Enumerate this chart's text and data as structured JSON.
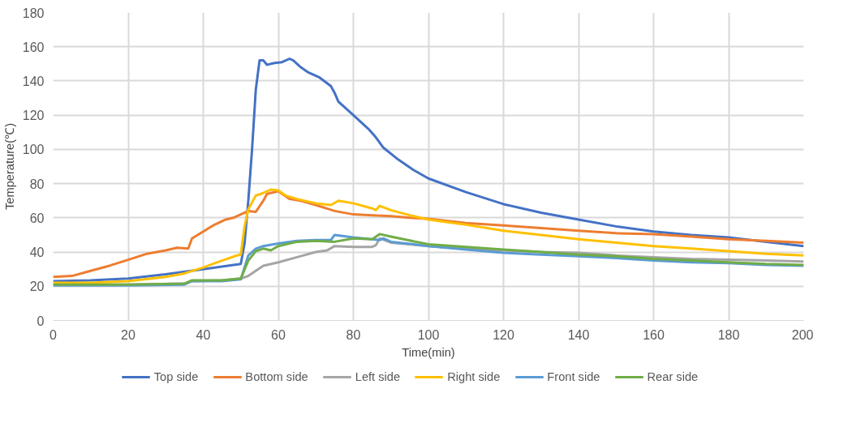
{
  "chart_data": {
    "type": "line",
    "xlabel": "Time(min)",
    "ylabel": "Temperature(℃)",
    "xlim": [
      0,
      200
    ],
    "xticks": [
      0,
      20,
      40,
      60,
      80,
      100,
      120,
      140,
      160,
      180,
      200
    ],
    "ylim": [
      0,
      180
    ],
    "yticks": [
      0,
      20,
      40,
      60,
      80,
      100,
      120,
      140,
      160,
      180
    ],
    "grid": true,
    "legend": "bottom",
    "marker": "none",
    "line_style": "solid",
    "series": [
      {
        "name": "Top side",
        "color": "#4472c4",
        "x": [
          0,
          10,
          20,
          30,
          40,
          45,
          50,
          51,
          52,
          53,
          54,
          55,
          56,
          57,
          59,
          61,
          63,
          64,
          66,
          68,
          71,
          74,
          75,
          76,
          80,
          84,
          86,
          88,
          92,
          96,
          100,
          110,
          120,
          130,
          140,
          150,
          160,
          170,
          180,
          190,
          200
        ],
        "values": [
          23,
          23.5,
          24.5,
          27,
          30,
          31.5,
          33,
          45,
          70,
          100,
          135,
          152,
          152,
          149.5,
          150.5,
          151,
          153,
          152,
          148,
          145,
          142,
          137,
          133,
          128,
          120,
          112,
          107,
          101,
          94,
          88,
          83,
          75,
          68,
          63,
          59,
          55,
          52,
          50,
          48.5,
          46,
          43.5
        ]
      },
      {
        "name": "Bottom side",
        "color": "#ed7d31",
        "x": [
          0,
          5,
          10,
          15,
          20,
          25,
          30,
          33,
          36,
          37,
          40,
          43,
          46,
          48,
          50,
          52,
          54,
          56,
          57,
          60,
          61,
          63,
          66,
          70,
          75,
          80,
          85,
          90,
          95,
          100,
          110,
          120,
          130,
          140,
          150,
          160,
          170,
          180,
          190,
          200
        ],
        "values": [
          25.5,
          26,
          29,
          32,
          35.5,
          39,
          41,
          42.5,
          42,
          48,
          52,
          56,
          59,
          60,
          62,
          64,
          63.5,
          70,
          74,
          75.5,
          74,
          71,
          70,
          67.5,
          64,
          62,
          61.5,
          61,
          60,
          59.5,
          57,
          55.5,
          54,
          52.5,
          51,
          50.5,
          49,
          47.5,
          46.5,
          45.5
        ]
      },
      {
        "name": "Left side",
        "color": "#a5a5a5",
        "x": [
          0,
          20,
          35,
          37,
          45,
          50,
          52,
          54,
          56,
          60,
          65,
          70,
          73,
          75,
          80,
          85,
          86,
          87,
          90,
          100,
          110,
          120,
          130,
          140,
          150,
          160,
          170,
          180,
          190,
          200
        ],
        "values": [
          21,
          21,
          21.5,
          23,
          23.5,
          24.5,
          26,
          29,
          32,
          34,
          37,
          40,
          41,
          43.5,
          43,
          43,
          44,
          48,
          45.5,
          43.5,
          42,
          41,
          40,
          39.5,
          38,
          37,
          36,
          35.5,
          35,
          34.5
        ]
      },
      {
        "name": "Right side",
        "color": "#ffc000",
        "x": [
          0,
          10,
          20,
          30,
          35,
          40,
          45,
          49,
          50,
          51,
          52,
          54,
          56,
          58,
          60,
          62,
          65,
          70,
          74,
          76,
          80,
          85,
          86,
          87,
          90,
          95,
          100,
          110,
          120,
          130,
          140,
          150,
          160,
          170,
          180,
          190,
          200
        ],
        "values": [
          22,
          22,
          23,
          25.5,
          27.5,
          31,
          35,
          38,
          38.5,
          55,
          65,
          73,
          74.5,
          76.5,
          76,
          73,
          71,
          68.5,
          67.5,
          70,
          68.5,
          65.5,
          64.5,
          67,
          64.5,
          61.5,
          59,
          56,
          52.5,
          50,
          47.5,
          45.5,
          43.5,
          42,
          40.5,
          39,
          38
        ]
      },
      {
        "name": "Front side",
        "color": "#5b9bd5",
        "x": [
          0,
          20,
          35,
          37,
          45,
          50,
          52,
          54,
          56,
          60,
          65,
          70,
          74,
          75,
          80,
          87,
          88,
          90,
          100,
          110,
          120,
          130,
          140,
          150,
          160,
          170,
          180,
          190,
          200
        ],
        "values": [
          20.5,
          20.5,
          21,
          23,
          23,
          24,
          38,
          42,
          43.5,
          45,
          46.5,
          47,
          47,
          50,
          48.5,
          47,
          48,
          46,
          43.5,
          41.5,
          39.5,
          38.5,
          37.5,
          36.5,
          35,
          34,
          33.5,
          32.5,
          32
        ]
      },
      {
        "name": "Rear side",
        "color": "#70ad47",
        "x": [
          0,
          20,
          35,
          37,
          45,
          50,
          52,
          54,
          56,
          58,
          60,
          65,
          70,
          75,
          80,
          85,
          87,
          90,
          100,
          110,
          120,
          130,
          140,
          150,
          160,
          170,
          180,
          190,
          200
        ],
        "values": [
          21,
          21,
          21.5,
          23.5,
          23.5,
          24.5,
          35,
          40.5,
          42,
          41,
          43.5,
          46,
          46.5,
          46,
          48,
          47.5,
          50.5,
          49,
          44.5,
          43,
          41.5,
          40,
          38.5,
          37.5,
          36,
          35,
          34,
          33,
          32.5
        ]
      }
    ]
  }
}
